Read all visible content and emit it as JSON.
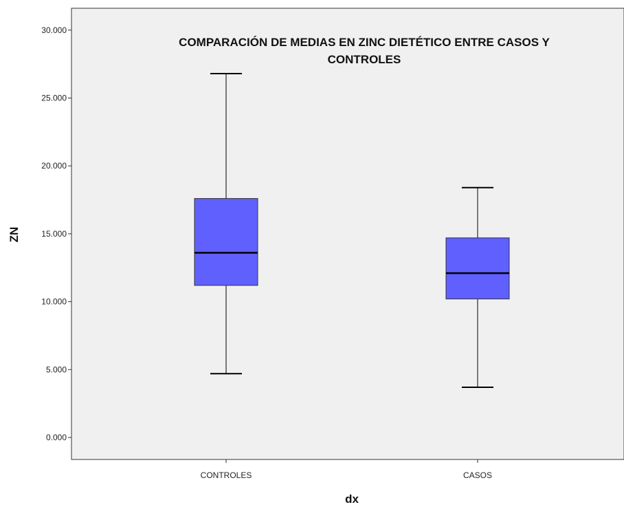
{
  "chart_data": {
    "type": "boxplot",
    "title_lines": [
      "COMPARACIÓN DE MEDIAS EN ZINC DIETÉTICO ENTRE CASOS Y",
      "CONTROLES"
    ],
    "xlabel": "dx",
    "ylabel": "ZN",
    "ylim": [
      -1.5,
      31.6
    ],
    "yticks": [
      0,
      5,
      10,
      15,
      20,
      25,
      30
    ],
    "ytick_labels": [
      "0.000",
      "5.000",
      "10.000",
      "15.000",
      "20.000",
      "25.000",
      "30.000"
    ],
    "grid": false,
    "plot_background": "#f0f0f0",
    "box_color": "#6060ff",
    "categories": [
      "CONTROLES",
      "CASOS"
    ],
    "boxes": [
      {
        "category": "CONTROLES",
        "min": 4.7,
        "q1": 11.2,
        "median": 13.6,
        "q3": 17.6,
        "max": 26.8
      },
      {
        "category": "CASOS",
        "min": 3.7,
        "q1": 10.2,
        "median": 12.1,
        "q3": 14.7,
        "max": 18.4
      }
    ]
  }
}
